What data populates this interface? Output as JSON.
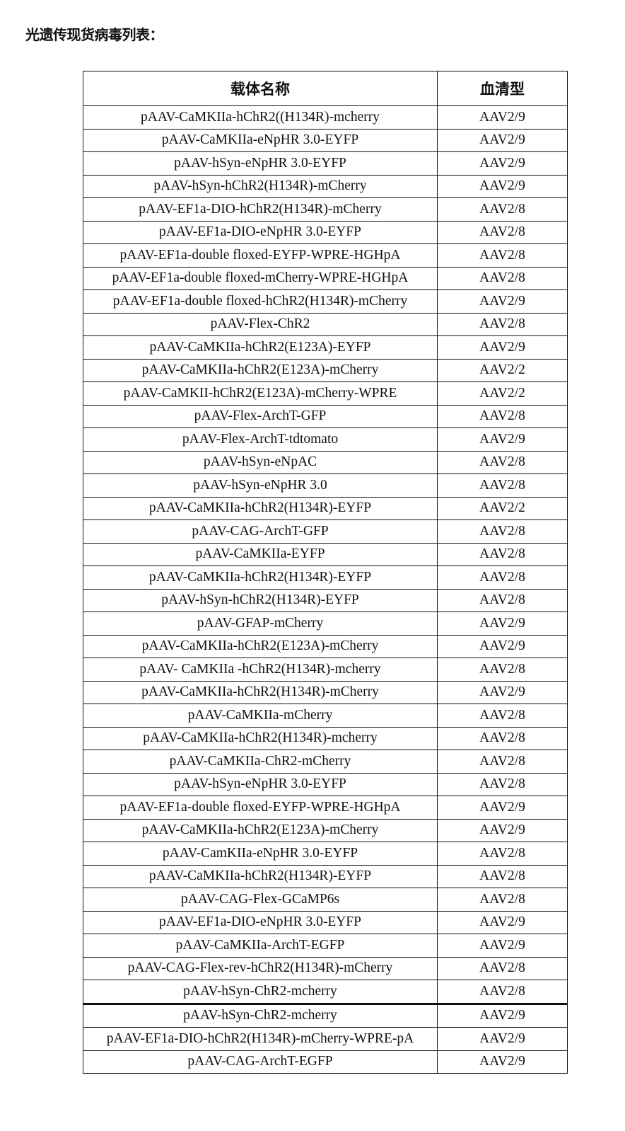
{
  "title": "光遗传现货病毒列表：",
  "table": {
    "headers": [
      "载体名称",
      "血清型"
    ],
    "rows": [
      [
        "pAAV-CaMKIIa-hChR2((H134R)-mcherry",
        "AAV2/9"
      ],
      [
        "pAAV-CaMKIIa-eNpHR 3.0-EYFP",
        "AAV2/9"
      ],
      [
        "pAAV-hSyn-eNpHR 3.0-EYFP",
        "AAV2/9"
      ],
      [
        "pAAV-hSyn-hChR2(H134R)-mCherry",
        "AAV2/9"
      ],
      [
        "pAAV-EF1a-DIO-hChR2(H134R)-mCherry",
        "AAV2/8"
      ],
      [
        "pAAV-EF1a-DIO-eNpHR 3.0-EYFP",
        "AAV2/8"
      ],
      [
        "pAAV-EF1a-double floxed-EYFP-WPRE-HGHpA",
        "AAV2/8"
      ],
      [
        "pAAV-EF1a-double floxed-mCherry-WPRE-HGHpA",
        "AAV2/8"
      ],
      [
        "pAAV-EF1a-double floxed-hChR2(H134R)-mCherry",
        "AAV2/9"
      ],
      [
        "pAAV-Flex-ChR2",
        "AAV2/8"
      ],
      [
        "pAAV-CaMKIIa-hChR2(E123A)-EYFP",
        "AAV2/9"
      ],
      [
        "pAAV-CaMKIIa-hChR2(E123A)-mCherry",
        "AAV2/2"
      ],
      [
        "pAAV-CaMKII-hChR2(E123A)-mCherry-WPRE",
        "AAV2/2"
      ],
      [
        "pAAV-Flex-ArchT-GFP",
        "AAV2/8"
      ],
      [
        "pAAV-Flex-ArchT-tdtomato",
        "AAV2/9"
      ],
      [
        "pAAV-hSyn-eNpAC",
        "AAV2/8"
      ],
      [
        "pAAV-hSyn-eNpHR 3.0",
        "AAV2/8"
      ],
      [
        "pAAV-CaMKIIa-hChR2(H134R)-EYFP",
        "AAV2/2"
      ],
      [
        "pAAV-CAG-ArchT-GFP",
        "AAV2/8"
      ],
      [
        "pAAV-CaMKIIa-EYFP",
        "AAV2/8"
      ],
      [
        "pAAV-CaMKIIa-hChR2(H134R)-EYFP",
        "AAV2/8"
      ],
      [
        "pAAV-hSyn-hChR2(H134R)-EYFP",
        "AAV2/8"
      ],
      [
        "pAAV-GFAP-mCherry",
        "AAV2/9"
      ],
      [
        "pAAV-CaMKIIa-hChR2(E123A)-mCherry",
        "AAV2/9"
      ],
      [
        "pAAV- CaMKIIa -hChR2(H134R)-mcherry",
        "AAV2/8"
      ],
      [
        "pAAV-CaMKIIa-hChR2(H134R)-mCherry",
        "AAV2/9"
      ],
      [
        "pAAV-CaMKIIa-mCherry",
        "AAV2/8"
      ],
      [
        "pAAV-CaMKIIa-hChR2(H134R)-mcherry",
        "AAV2/8"
      ],
      [
        "pAAV-CaMKIIa-ChR2-mCherry",
        "AAV2/8"
      ],
      [
        "pAAV-hSyn-eNpHR 3.0-EYFP",
        "AAV2/8"
      ],
      [
        "pAAV-EF1a-double floxed-EYFP-WPRE-HGHpA",
        "AAV2/9"
      ],
      [
        "pAAV-CaMKIIa-hChR2(E123A)-mCherry",
        "AAV2/9"
      ],
      [
        "pAAV-CamKIIa-eNpHR 3.0-EYFP",
        "AAV2/8"
      ],
      [
        "pAAV-CaMKIIa-hChR2(H134R)-EYFP",
        "AAV2/8"
      ],
      [
        "pAAV-CAG-Flex-GCaMP6s",
        "AAV2/8"
      ],
      [
        "pAAV-EF1a-DIO-eNpHR 3.0-EYFP",
        "AAV2/9"
      ],
      [
        "pAAV-CaMKIIa-ArchT-EGFP",
        "AAV2/9"
      ],
      [
        "pAAV-CAG-Flex-rev-hChR2(H134R)-mCherry",
        "AAV2/8"
      ],
      [
        "pAAV-hSyn-ChR2-mcherry",
        "AAV2/8"
      ],
      [
        "pAAV-hSyn-ChR2-mcherry",
        "AAV2/9"
      ],
      [
        "pAAV-EF1a-DIO-hChR2(H134R)-mCherry-WPRE-pA",
        "AAV2/9"
      ],
      [
        "pAAV-CAG-ArchT-EGFP",
        "AAV2/9"
      ]
    ]
  }
}
